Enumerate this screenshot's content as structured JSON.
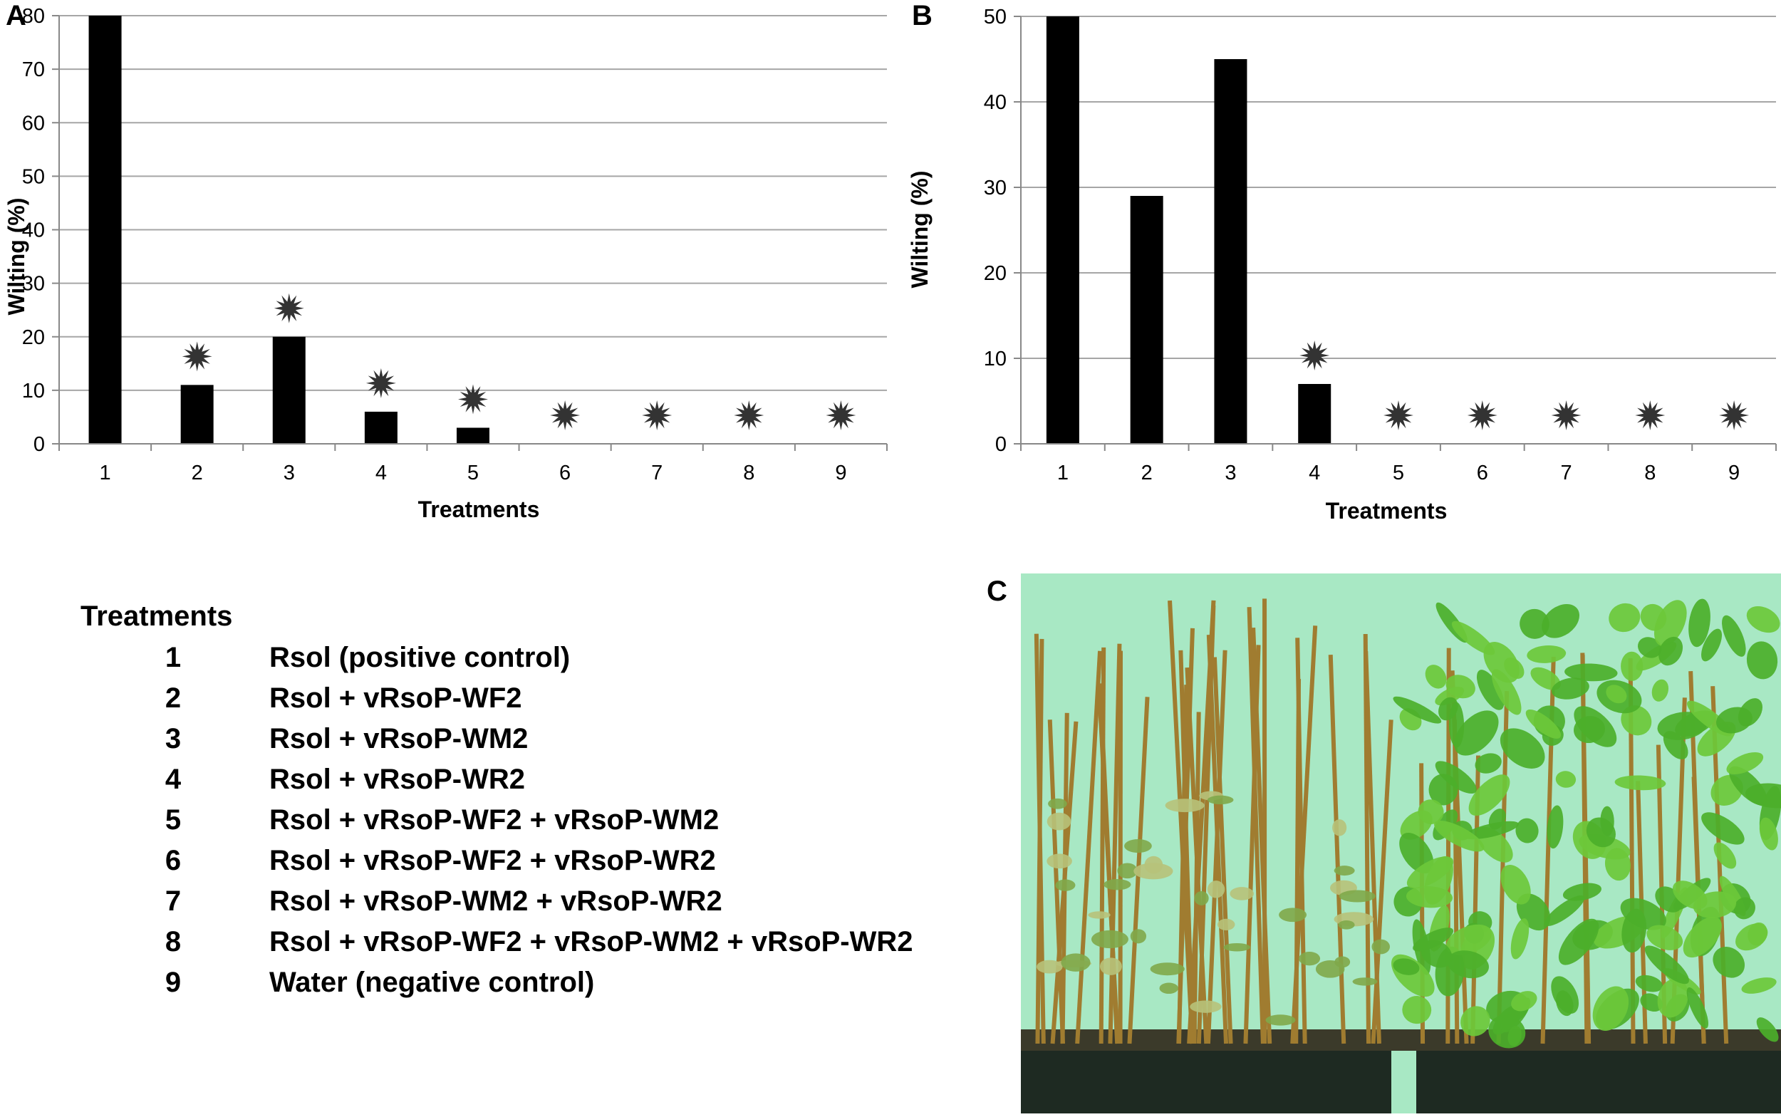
{
  "panels": {
    "a": "A",
    "b": "B",
    "c": "C"
  },
  "chart_data": [
    {
      "type": "bar",
      "panel": "A",
      "categories": [
        "1",
        "2",
        "3",
        "4",
        "5",
        "6",
        "7",
        "8",
        "9"
      ],
      "values": [
        80,
        11,
        20,
        6,
        3,
        0,
        0,
        0,
        0
      ],
      "significant": [
        false,
        true,
        true,
        true,
        true,
        true,
        true,
        true,
        true
      ],
      "xlabel": "Treatments",
      "ylabel": "Wilting (%)",
      "ylim": [
        0,
        80
      ],
      "yticks": [
        0,
        10,
        20,
        30,
        40,
        50,
        60,
        70,
        80
      ],
      "grid": true,
      "bar_color": "#000000",
      "marker_color": "#333333"
    },
    {
      "type": "bar",
      "panel": "B",
      "categories": [
        "1",
        "2",
        "3",
        "4",
        "5",
        "6",
        "7",
        "8",
        "9"
      ],
      "values": [
        50,
        29,
        45,
        7,
        0,
        0,
        0,
        0,
        0
      ],
      "significant": [
        false,
        false,
        false,
        true,
        true,
        true,
        true,
        true,
        true
      ],
      "xlabel": "Treatments",
      "ylabel": "Wilting (%)",
      "ylim": [
        0,
        50
      ],
      "yticks": [
        0,
        10,
        20,
        30,
        40,
        50
      ],
      "grid": true,
      "bar_color": "#000000",
      "marker_color": "#333333"
    }
  ],
  "legend": {
    "title": "Treatments",
    "items": [
      {
        "number": "1",
        "label": "Rsol (positive control)"
      },
      {
        "number": "2",
        "label": "Rsol + vRsoP-WF2"
      },
      {
        "number": "3",
        "label": "Rsol + vRsoP-WM2"
      },
      {
        "number": "4",
        "label": "Rsol + vRsoP-WR2"
      },
      {
        "number": "5",
        "label": "Rsol + vRsoP-WF2 + vRsoP-WM2"
      },
      {
        "number": "6",
        "label": "Rsol + vRsoP-WF2 + vRsoP-WR2"
      },
      {
        "number": "7",
        "label": "Rsol + vRsoP-WM2 + vRsoP-WR2"
      },
      {
        "number": "8",
        "label": "Rsol + vRsoP-WF2 + vRsoP-WM2 + vRsoP-WR2"
      },
      {
        "number": "9",
        "label": "Water (negative control)"
      }
    ]
  },
  "photo": {
    "background_color": "#a8e8c4",
    "tray_color": "#1e2a22",
    "leaf_color": "#4caf2a",
    "stake_color": "#a07c30"
  }
}
